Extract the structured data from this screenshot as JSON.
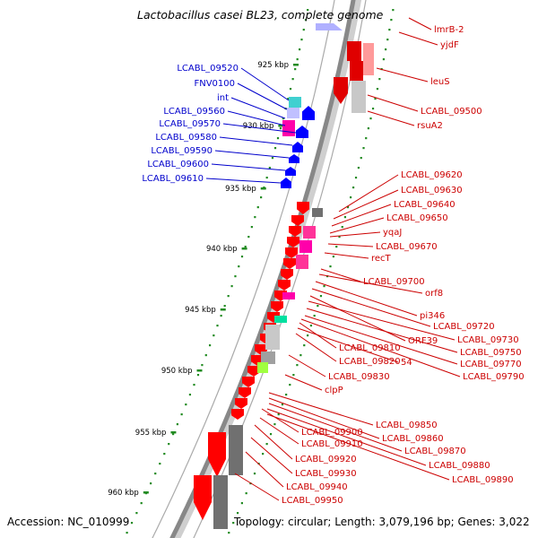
{
  "title": "Lactobacillus casei BL23, complete genome",
  "footer": {
    "accession": "Accession: NC_010999",
    "summary": "Topology: circular; Length: 3,079,196 bp; Genes: 3,022"
  },
  "colors": {
    "forward_gene": "#ff0000",
    "reverse_gene": "#0000e6",
    "left_label": "#0000cc",
    "right_label": "#cc0000",
    "tick": "#228b22",
    "backbone": "#888888"
  },
  "kbp_ticks": [
    "925 kbp",
    "930 kbp",
    "935 kbp",
    "940 kbp",
    "945 kbp",
    "950 kbp",
    "955 kbp",
    "960 kbp"
  ],
  "left_labels": [
    "LCABL_09520",
    "FNV0100",
    "int",
    "LCABL_09560",
    "LCABL_09570",
    "LCABL_09580",
    "LCABL_09590",
    "LCABL_09600",
    "LCABL_09610"
  ],
  "right_labels": [
    "lmrB-2",
    "yjdF",
    "leuS",
    "LCABL_09500",
    "rsuA2",
    "LCABL_09620",
    "LCABL_09630",
    "LCABL_09640",
    "LCABL_09650",
    "yqaJ",
    "LCABL_09670",
    "recT",
    "LCABL_09700",
    "orf8",
    "pi346",
    "LCABL_09720",
    "ORF39",
    "LCABL_09730",
    "LCABL_09750",
    "LCABL_09810",
    "54",
    "LCABL_09770",
    "LCABL_09820",
    "LCABL_09790",
    "LCABL_09830",
    "clpP",
    "LCABL_09850",
    "LCABL_09900",
    "LCABL_09860",
    "LCABL_09910",
    "LCABL_09870",
    "LCABL_09880",
    "LCABL_09920",
    "LCABL_09890",
    "LCABL_09930",
    "LCABL_09940",
    "LCABL_09950"
  ]
}
